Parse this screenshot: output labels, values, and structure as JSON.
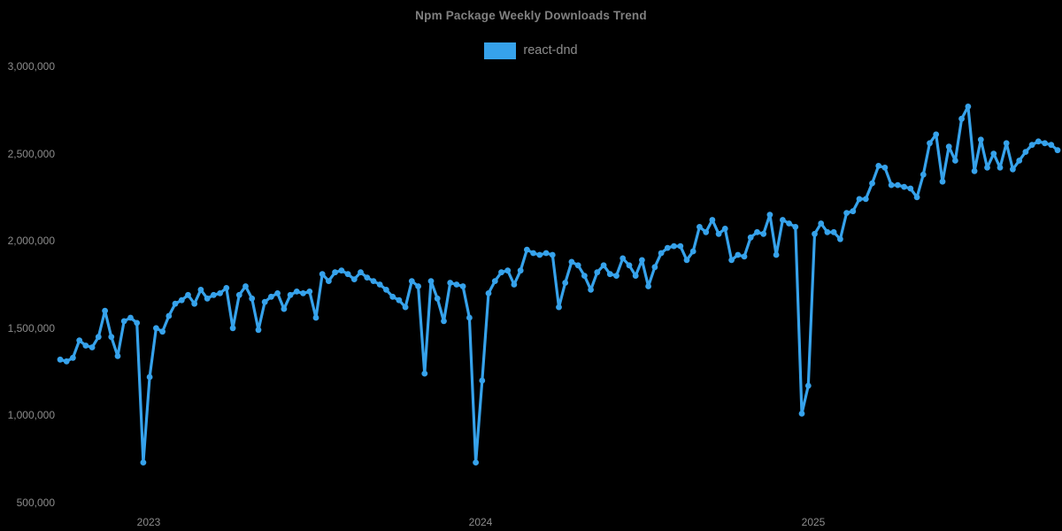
{
  "chart": {
    "title": "Npm Package Weekly Downloads Trend",
    "background_color": "#000000",
    "label_color": "#8c8c8c",
    "legend": {
      "items": [
        {
          "label": "react-dnd",
          "color": "#36A2EB"
        }
      ]
    }
  },
  "chart_data": {
    "type": "line",
    "title": "Npm Package Weekly Downloads Trend",
    "legend_position": "top",
    "grid": false,
    "x_axis": {
      "unit": "week",
      "tick_labels": [
        "2023",
        "2024",
        "2025"
      ],
      "tick_indices": [
        13.84,
        65.75,
        117.8
      ]
    },
    "y_axis": {
      "tick_labels": [
        "500,000",
        "1,000,000",
        "1,500,000",
        "2,000,000",
        "2,500,000",
        "3,000,000"
      ],
      "tick_values": [
        500000,
        1000000,
        1500000,
        2000000,
        2500000,
        3000000
      ],
      "range": [
        500000,
        3000000
      ]
    },
    "series": [
      {
        "name": "react-dnd",
        "color": "#36A2EB",
        "values": [
          1320000,
          1310000,
          1330000,
          1430000,
          1400000,
          1390000,
          1450000,
          1600000,
          1450000,
          1340000,
          1540000,
          1560000,
          1530000,
          730000,
          1220000,
          1500000,
          1480000,
          1570000,
          1640000,
          1660000,
          1690000,
          1640000,
          1720000,
          1670000,
          1690000,
          1700000,
          1730000,
          1500000,
          1690000,
          1740000,
          1670000,
          1490000,
          1650000,
          1680000,
          1700000,
          1610000,
          1690000,
          1710000,
          1700000,
          1710000,
          1560000,
          1810000,
          1770000,
          1820000,
          1830000,
          1810000,
          1780000,
          1820000,
          1790000,
          1770000,
          1750000,
          1720000,
          1680000,
          1660000,
          1620000,
          1770000,
          1740000,
          1240000,
          1770000,
          1670000,
          1540000,
          1760000,
          1750000,
          1740000,
          1560000,
          730000,
          1200000,
          1700000,
          1770000,
          1820000,
          1830000,
          1750000,
          1830000,
          1950000,
          1930000,
          1920000,
          1930000,
          1920000,
          1620000,
          1760000,
          1880000,
          1860000,
          1800000,
          1720000,
          1820000,
          1860000,
          1810000,
          1800000,
          1900000,
          1860000,
          1800000,
          1890000,
          1740000,
          1850000,
          1930000,
          1960000,
          1970000,
          1970000,
          1890000,
          1940000,
          2080000,
          2050000,
          2120000,
          2040000,
          2070000,
          1890000,
          1920000,
          1910000,
          2020000,
          2050000,
          2040000,
          2150000,
          1920000,
          2120000,
          2100000,
          2080000,
          1010000,
          1170000,
          2040000,
          2100000,
          2050000,
          2050000,
          2010000,
          2160000,
          2170000,
          2240000,
          2240000,
          2330000,
          2430000,
          2420000,
          2320000,
          2320000,
          2310000,
          2300000,
          2250000,
          2380000,
          2560000,
          2610000,
          2340000,
          2540000,
          2460000,
          2700000,
          2770000,
          2400000,
          2580000,
          2420000,
          2500000,
          2420000,
          2560000,
          2410000,
          2460000,
          2510000,
          2550000,
          2570000,
          2560000,
          2550000,
          2520000
        ]
      }
    ]
  }
}
